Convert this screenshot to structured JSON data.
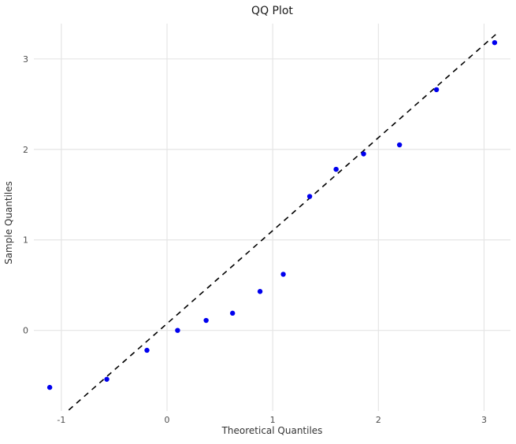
{
  "chart_data": {
    "type": "scatter",
    "title": "QQ Plot",
    "xlabel": "Theoretical Quantiles",
    "ylabel": "Sample Quantiles",
    "xlim": [
      -1.26,
      3.25
    ],
    "ylim": [
      -0.89,
      3.39
    ],
    "x_ticks": [
      -1,
      0,
      1,
      2,
      3
    ],
    "y_ticks": [
      0,
      1,
      2,
      3
    ],
    "grid": true,
    "legend": "none",
    "points": [
      [
        -1.11,
        -0.63
      ],
      [
        -0.57,
        -0.54
      ],
      [
        -0.19,
        -0.22
      ],
      [
        0.1,
        0.0
      ],
      [
        0.37,
        0.11
      ],
      [
        0.62,
        0.19
      ],
      [
        0.88,
        0.43
      ],
      [
        1.1,
        0.62
      ],
      [
        1.35,
        1.48
      ],
      [
        1.6,
        1.78
      ],
      [
        1.86,
        1.95
      ],
      [
        2.2,
        2.05
      ],
      [
        2.55,
        2.66
      ],
      [
        3.1,
        3.18
      ]
    ],
    "ref_line": {
      "x1": -0.93,
      "y1": -0.88,
      "x2": 3.12,
      "y2": 3.28,
      "style": "dashed"
    },
    "colors": {
      "point": "#0000EE",
      "ref_line": "#000000",
      "grid": "#E5E5E5",
      "background": "#FFFFFF",
      "tick_text": "#4D4D4D",
      "title_text": "#1A1A1A"
    }
  }
}
